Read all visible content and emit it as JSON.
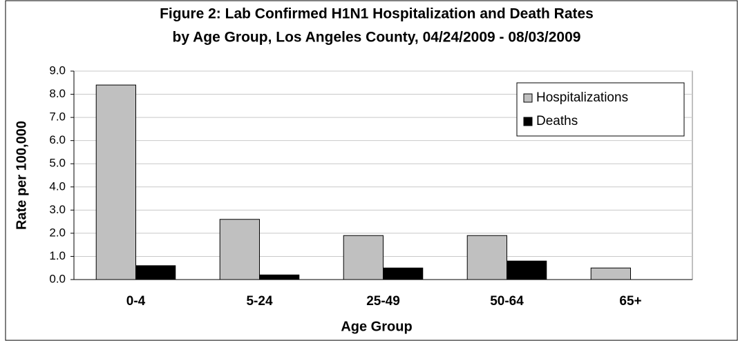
{
  "chart_data": {
    "type": "bar",
    "title": [
      "Figure 2: Lab Confirmed H1N1 Hospitalization and Death Rates",
      "by Age Group, Los Angeles County, 04/24/2009 - 08/03/2009"
    ],
    "x_label": "Age Group",
    "y_label": "Rate per 100,000",
    "categories": [
      "0-4",
      "5-24",
      "25-49",
      "50-64",
      "65+"
    ],
    "series": [
      {
        "name": "Hospitalizations",
        "color": "#c0c0c0",
        "values": [
          8.4,
          2.6,
          1.9,
          1.9,
          0.5
        ]
      },
      {
        "name": "Deaths",
        "color": "#000000",
        "values": [
          0.6,
          0.2,
          0.5,
          0.8,
          0
        ]
      }
    ],
    "ylim": [
      0,
      9
    ],
    "yticks": [
      {
        "value": 0,
        "label": "0.0"
      },
      {
        "value": 1,
        "label": "1.0"
      },
      {
        "value": 2,
        "label": "2.0"
      },
      {
        "value": 3,
        "label": "3.0"
      },
      {
        "value": 4,
        "label": "4.0"
      },
      {
        "value": 5,
        "label": "5.0"
      },
      {
        "value": 6,
        "label": "6.0"
      },
      {
        "value": 7,
        "label": "7.0"
      },
      {
        "value": 8,
        "label": "8.0"
      },
      {
        "value": 9,
        "label": "9.0"
      }
    ],
    "grid": true,
    "legend": "upper right"
  }
}
